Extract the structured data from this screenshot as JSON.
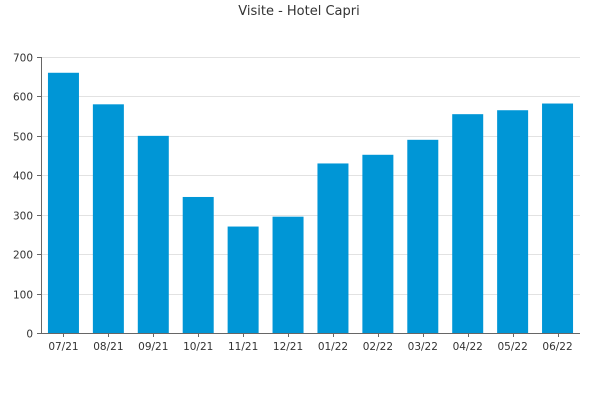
{
  "chart_data": {
    "type": "bar",
    "title": "Visite - Hotel Capri",
    "categories": [
      "07/21",
      "08/21",
      "09/21",
      "10/21",
      "11/21",
      "12/21",
      "01/22",
      "02/22",
      "03/22",
      "04/22",
      "05/22",
      "06/22"
    ],
    "values": [
      660,
      580,
      500,
      345,
      270,
      295,
      430,
      452,
      490,
      555,
      565,
      582
    ],
    "ylim": [
      0,
      700
    ],
    "yticks": [
      0,
      100,
      200,
      300,
      400,
      500,
      600,
      700
    ],
    "grid": true,
    "bar_color": "#0096d6"
  }
}
